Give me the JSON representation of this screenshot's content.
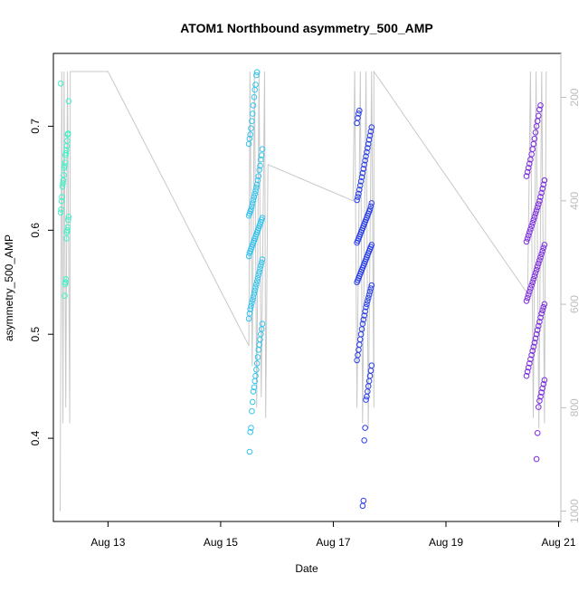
{
  "chart_data": {
    "type": "scatter",
    "title": "ATOM1 Northbound asymmetry_500_AMP",
    "xlabel": "Date",
    "ylabel": "asymmetry_500_AMP",
    "x_ticks": [
      "Aug 13",
      "Aug 15",
      "Aug 17",
      "Aug 19",
      "Aug 21"
    ],
    "x_tick_values": [
      13,
      15,
      17,
      19,
      21
    ],
    "xlim": [
      12.03,
      21.04
    ],
    "ylim": [
      0.32,
      0.77
    ],
    "y_ticks": [
      0.4,
      0.5,
      0.6,
      0.7
    ],
    "y_tick_labels": [
      "0.4",
      "0.5",
      "0.6",
      "0.7"
    ],
    "y2_ticks": [
      200,
      400,
      600,
      800,
      1000
    ],
    "y2_tick_labels": [
      "200",
      "400",
      "600",
      "800",
      "1000"
    ],
    "y2lim": [
      1020,
      115
    ],
    "grid": false,
    "legend": "none",
    "colors": {
      "cluster_aug12": "#3ff2c8",
      "cluster_aug15": "#33c4ee",
      "cluster_aug17": "#2a3fe8",
      "cluster_aug20": "#7a2ae0",
      "secondary_series": "#c8c8c8",
      "secondary_axis": "#bdbdbd"
    },
    "clusters": [
      {
        "x_center": 12.23,
        "x_spread": 0.07,
        "color_key": "cluster_aug12",
        "values": [
          0.741,
          0.724,
          0.693,
          0.692,
          0.686,
          0.681,
          0.677,
          0.674,
          0.672,
          0.665,
          0.662,
          0.66,
          0.653,
          0.648,
          0.645,
          0.642,
          0.632,
          0.628,
          0.62,
          0.617,
          0.613,
          0.61,
          0.603,
          0.6,
          0.598,
          0.592,
          0.553,
          0.55,
          0.548,
          0.537
        ]
      },
      {
        "x_center": 15.62,
        "x_spread": 0.12,
        "color_key": "cluster_aug15",
        "values": [
          0.752,
          0.749,
          0.74,
          0.735,
          0.728,
          0.72,
          0.712,
          0.705,
          0.698,
          0.692,
          0.688,
          0.683,
          0.678,
          0.672,
          0.668,
          0.662,
          0.658,
          0.652,
          0.648,
          0.644,
          0.641,
          0.638,
          0.635,
          0.632,
          0.629,
          0.626,
          0.623,
          0.62,
          0.618,
          0.616,
          0.614,
          0.612,
          0.61,
          0.608,
          0.606,
          0.604,
          0.602,
          0.6,
          0.598,
          0.596,
          0.594,
          0.592,
          0.59,
          0.588,
          0.586,
          0.584,
          0.582,
          0.58,
          0.578,
          0.575,
          0.572,
          0.569,
          0.566,
          0.563,
          0.56,
          0.557,
          0.554,
          0.551,
          0.548,
          0.545,
          0.542,
          0.539,
          0.536,
          0.533,
          0.53,
          0.527,
          0.524,
          0.52,
          0.515,
          0.51,
          0.505,
          0.5,
          0.495,
          0.49,
          0.485,
          0.478,
          0.472,
          0.466,
          0.46,
          0.455,
          0.449,
          0.445,
          0.435,
          0.426,
          0.41,
          0.406,
          0.387
        ]
      },
      {
        "x_center": 17.55,
        "x_spread": 0.13,
        "color_key": "cluster_aug17",
        "values": [
          0.715,
          0.712,
          0.708,
          0.703,
          0.699,
          0.695,
          0.691,
          0.687,
          0.683,
          0.679,
          0.675,
          0.671,
          0.667,
          0.663,
          0.659,
          0.655,
          0.651,
          0.647,
          0.643,
          0.639,
          0.635,
          0.632,
          0.629,
          0.626,
          0.623,
          0.62,
          0.618,
          0.616,
          0.614,
          0.612,
          0.61,
          0.608,
          0.606,
          0.604,
          0.602,
          0.6,
          0.598,
          0.596,
          0.594,
          0.592,
          0.59,
          0.588,
          0.586,
          0.584,
          0.582,
          0.58,
          0.578,
          0.576,
          0.574,
          0.572,
          0.57,
          0.568,
          0.566,
          0.564,
          0.562,
          0.56,
          0.558,
          0.556,
          0.554,
          0.552,
          0.55,
          0.547,
          0.544,
          0.541,
          0.538,
          0.535,
          0.532,
          0.529,
          0.526,
          0.522,
          0.518,
          0.514,
          0.51,
          0.505,
          0.5,
          0.495,
          0.49,
          0.485,
          0.48,
          0.475,
          0.47,
          0.465,
          0.46,
          0.455,
          0.45,
          0.445,
          0.44,
          0.437,
          0.41,
          0.398,
          0.34,
          0.335
        ]
      },
      {
        "x_center": 20.59,
        "x_spread": 0.16,
        "color_key": "cluster_aug20",
        "values": [
          0.72,
          0.716,
          0.71,
          0.705,
          0.7,
          0.694,
          0.688,
          0.683,
          0.678,
          0.673,
          0.668,
          0.664,
          0.66,
          0.656,
          0.652,
          0.648,
          0.644,
          0.64,
          0.636,
          0.632,
          0.628,
          0.625,
          0.622,
          0.619,
          0.616,
          0.613,
          0.61,
          0.607,
          0.604,
          0.601,
          0.598,
          0.595,
          0.592,
          0.589,
          0.586,
          0.583,
          0.58,
          0.577,
          0.574,
          0.571,
          0.568,
          0.565,
          0.562,
          0.559,
          0.556,
          0.553,
          0.55,
          0.547,
          0.544,
          0.541,
          0.538,
          0.535,
          0.532,
          0.529,
          0.526,
          0.523,
          0.52,
          0.516,
          0.512,
          0.508,
          0.504,
          0.5,
          0.496,
          0.492,
          0.488,
          0.484,
          0.48,
          0.476,
          0.472,
          0.468,
          0.464,
          0.46,
          0.456,
          0.452,
          0.448,
          0.444,
          0.44,
          0.436,
          0.43,
          0.405,
          0.38
        ]
      }
    ],
    "secondary_series": {
      "axis": "right",
      "description_style": "grey spikes",
      "points": [
        [
          12.15,
          1000
        ],
        [
          12.18,
          150
        ],
        [
          12.2,
          830
        ],
        [
          12.22,
          150
        ],
        [
          12.25,
          800
        ],
        [
          12.28,
          150
        ],
        [
          12.32,
          830
        ],
        [
          12.33,
          150
        ],
        [
          13.0,
          150
        ],
        [
          15.5,
          680
        ],
        [
          15.52,
          150
        ],
        [
          15.56,
          720
        ],
        [
          15.6,
          150
        ],
        [
          15.64,
          800
        ],
        [
          15.68,
          150
        ],
        [
          15.72,
          780
        ],
        [
          15.78,
          150
        ],
        [
          15.8,
          820
        ],
        [
          15.84,
          330
        ],
        [
          17.35,
          400
        ],
        [
          17.38,
          150
        ],
        [
          17.42,
          800
        ],
        [
          17.48,
          150
        ],
        [
          17.52,
          830
        ],
        [
          17.58,
          150
        ],
        [
          17.62,
          840
        ],
        [
          17.68,
          150
        ],
        [
          17.72,
          800
        ],
        [
          17.72,
          150
        ],
        [
          20.45,
          580
        ],
        [
          20.5,
          150
        ],
        [
          20.55,
          820
        ],
        [
          20.6,
          150
        ],
        [
          20.65,
          840
        ],
        [
          20.7,
          150
        ],
        [
          20.75,
          830
        ],
        [
          20.78,
          150
        ]
      ]
    }
  }
}
